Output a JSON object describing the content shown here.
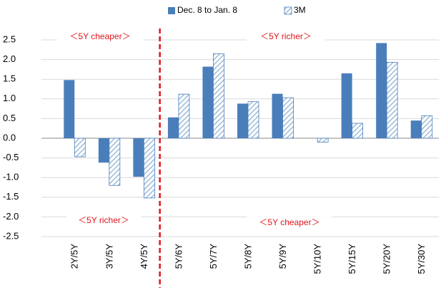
{
  "chart_data": {
    "type": "bar",
    "categories": [
      "2Y/5Y",
      "3Y/5Y",
      "4Y/5Y",
      "5Y/6Y",
      "5Y/7Y",
      "5Y/8Y",
      "5Y/9Y",
      "5Y/10Y",
      "5Y/15Y",
      "5Y/20Y",
      "5Y/30Y"
    ],
    "series": [
      {
        "name": "Dec. 8 to Jan. 8",
        "color": "#4a7ebb",
        "values": [
          1.48,
          -0.62,
          -0.98,
          0.53,
          1.82,
          0.88,
          1.13,
          0,
          1.65,
          2.42,
          0.45
        ]
      },
      {
        "name": "3M",
        "color": "#9bbbd9",
        "values": [
          -0.47,
          -1.2,
          -1.52,
          1.12,
          2.15,
          0.93,
          1.03,
          -0.1,
          0.38,
          1.93,
          0.57
        ]
      }
    ],
    "ylim": [
      -2.5,
      2.5
    ],
    "yticks": [
      -2.5,
      {
        "value": -2,
        "label": "-2.0"
      },
      -1.5,
      {
        "value": -1,
        "label": "-1.0"
      },
      -0.5,
      {
        "value": 0,
        "label": "0.0"
      },
      0.5,
      {
        "value": 1,
        "label": "1.0"
      },
      1.5,
      {
        "value": 2,
        "label": "2.0"
      },
      2.5
    ],
    "grid": true,
    "legend": "top",
    "annotations": [
      "＜5Y cheaper＞",
      "＜5Y richer＞",
      "＜5Y richer＞",
      "＜5Y cheaper＞"
    ]
  }
}
